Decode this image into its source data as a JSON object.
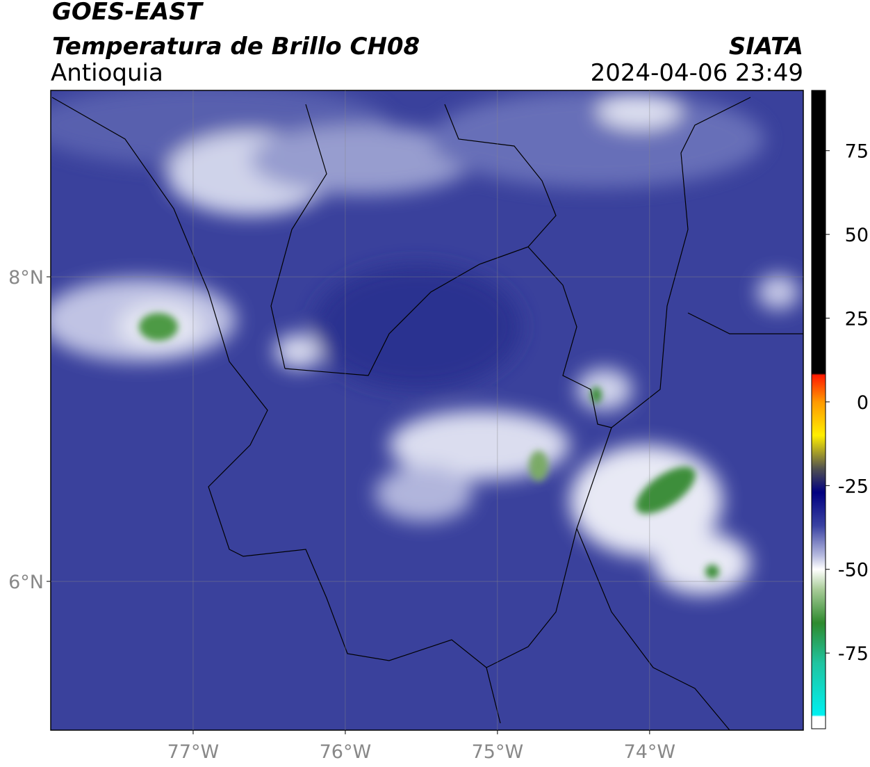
{
  "header": {
    "title": "GOES-EAST",
    "subtitle": "Temperatura de Brillo CH08",
    "region": "Antioquia",
    "source": "SIATA",
    "timestamp": "2024-04-06 23:49"
  },
  "map": {
    "xlim": [
      -77.936,
      -72.99
    ],
    "ylim": [
      5.023,
      9.224
    ],
    "xticks": [
      {
        "value": -77,
        "label": "77°W"
      },
      {
        "value": -76,
        "label": "76°W"
      },
      {
        "value": -75,
        "label": "75°W"
      },
      {
        "value": -74,
        "label": "74°W"
      }
    ],
    "yticks": [
      {
        "value": 8,
        "label": "8°N"
      },
      {
        "value": 6,
        "label": "6°N"
      }
    ],
    "grid": true
  },
  "colorbar": {
    "clim": [
      -97.6,
      93
    ],
    "ticks": [
      75,
      50,
      25,
      0,
      -25,
      -50,
      -75
    ],
    "stops": [
      {
        "value": 93,
        "color": "#000000"
      },
      {
        "value": 8.5,
        "color": "#000000"
      },
      {
        "value": 8,
        "color": "#ff1a00"
      },
      {
        "value": 0,
        "color": "#ff9900"
      },
      {
        "value": -10,
        "color": "#ffee00"
      },
      {
        "value": -20,
        "color": "#505050"
      },
      {
        "value": -27,
        "color": "#000080"
      },
      {
        "value": -37,
        "color": "#3a42a2"
      },
      {
        "value": -46,
        "color": "#b8bce0"
      },
      {
        "value": -50,
        "color": "#ffffff"
      },
      {
        "value": -56,
        "color": "#a8cc98"
      },
      {
        "value": -66,
        "color": "#2e8a2e"
      },
      {
        "value": -78,
        "color": "#20c4a0"
      },
      {
        "value": -93.5,
        "color": "#00f0f0"
      },
      {
        "value": -94,
        "color": "#ffffff"
      },
      {
        "value": -97.6,
        "color": "#ffffff"
      }
    ]
  }
}
